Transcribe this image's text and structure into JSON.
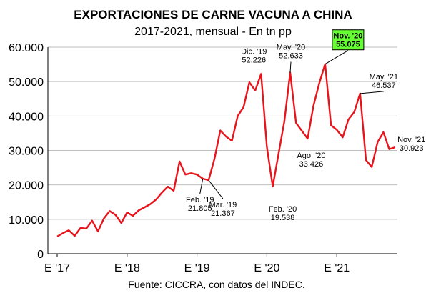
{
  "chart_data": {
    "type": "line",
    "title": "EXPORTACIONES DE CARNE VACUNA A CHINA",
    "subtitle": "2017-2021, mensual - En tn pp",
    "source": "Fuente: CICCRA, con datos del INDEC.",
    "xlabel": "",
    "ylabel": "",
    "ylim": [
      0,
      60000
    ],
    "y_ticks": [
      0,
      10000,
      20000,
      30000,
      40000,
      50000,
      60000
    ],
    "y_tick_labels": [
      "0",
      "10.000",
      "20.000",
      "30.000",
      "40.000",
      "50.000",
      "60.000"
    ],
    "x_tick_labels": [
      "E '17",
      "E '18",
      "E '19",
      "E '20",
      "E '21"
    ],
    "x_tick_index": [
      0,
      12,
      24,
      36,
      48
    ],
    "grid": true,
    "series_color": "#e8141b",
    "highlight_color": "#66ff33",
    "x": [
      "2017-01",
      "2017-02",
      "2017-03",
      "2017-04",
      "2017-05",
      "2017-06",
      "2017-07",
      "2017-08",
      "2017-09",
      "2017-10",
      "2017-11",
      "2017-12",
      "2018-01",
      "2018-02",
      "2018-03",
      "2018-04",
      "2018-05",
      "2018-06",
      "2018-07",
      "2018-08",
      "2018-09",
      "2018-10",
      "2018-11",
      "2018-12",
      "2019-01",
      "2019-02",
      "2019-03",
      "2019-04",
      "2019-05",
      "2019-06",
      "2019-07",
      "2019-08",
      "2019-09",
      "2019-10",
      "2019-11",
      "2019-12",
      "2020-01",
      "2020-02",
      "2020-03",
      "2020-04",
      "2020-05",
      "2020-06",
      "2020-07",
      "2020-08",
      "2020-09",
      "2020-10",
      "2020-11",
      "2020-12",
      "2021-01",
      "2021-02",
      "2021-03",
      "2021-04",
      "2021-05",
      "2021-06",
      "2021-07",
      "2021-08",
      "2021-09",
      "2021-10",
      "2021-11"
    ],
    "series": [
      {
        "values": [
          5000,
          6000,
          6800,
          5200,
          7500,
          7300,
          9600,
          6500,
          10200,
          12400,
          11300,
          8900,
          12000,
          11000,
          12600,
          13500,
          14400,
          15800,
          17800,
          19500,
          18300,
          26800,
          23000,
          23400,
          23000,
          21805,
          21367,
          27600,
          35800,
          34000,
          32800,
          40000,
          42600,
          49800,
          47400,
          52226,
          31000,
          19538,
          29000,
          38500,
          52633,
          38000,
          35700,
          33426,
          43000,
          49600,
          55075,
          37300,
          36000,
          33800,
          39000,
          41200,
          46537,
          27200,
          25200,
          32400,
          35300,
          30400,
          30923
        ]
      }
    ],
    "annotations": [
      {
        "index": 25,
        "line1": "Feb. '19",
        "line2": "21.805",
        "highlight": false
      },
      {
        "index": 26,
        "line1": "Mar. '19",
        "line2": "21.367",
        "highlight": false
      },
      {
        "index": 35,
        "line1": "Dic. '19",
        "line2": "52.226",
        "highlight": false
      },
      {
        "index": 37,
        "line1": "Feb. '20",
        "line2": "19.538",
        "highlight": false
      },
      {
        "index": 40,
        "line1": "May. '20",
        "line2": "52.633",
        "highlight": false
      },
      {
        "index": 43,
        "line1": "Ago. '20",
        "line2": "33.426",
        "highlight": false
      },
      {
        "index": 46,
        "line1": "Nov. '20",
        "line2": "55.075",
        "highlight": true
      },
      {
        "index": 52,
        "line1": "May. '21",
        "line2": "46.537",
        "highlight": false
      },
      {
        "index": 58,
        "line1": "Nov. '21",
        "line2": "30.923",
        "highlight": false
      }
    ]
  }
}
